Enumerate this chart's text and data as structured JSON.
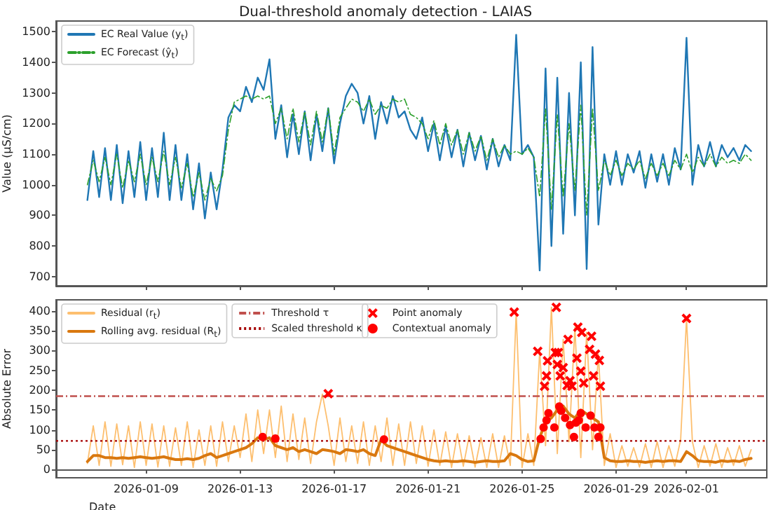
{
  "chart_data": [
    {
      "type": "line",
      "title": "Dual-threshold anomaly detection - LAIAS",
      "ylabel": "Value (µS/cm)",
      "x": [
        "2026-01-06T12:00",
        "2026-01-06T18:00",
        "2026-01-07T00:00",
        "2026-01-07T06:00",
        "2026-01-07T12:00",
        "2026-01-07T18:00",
        "2026-01-08T00:00",
        "2026-01-08T06:00",
        "2026-01-08T12:00",
        "2026-01-08T18:00",
        "2026-01-09T00:00",
        "2026-01-09T06:00",
        "2026-01-09T12:00",
        "2026-01-09T18:00",
        "2026-01-10T00:00",
        "2026-01-10T06:00",
        "2026-01-10T12:00",
        "2026-01-10T18:00",
        "2026-01-11T00:00",
        "2026-01-11T06:00",
        "2026-01-11T12:00",
        "2026-01-11T18:00",
        "2026-01-12T00:00",
        "2026-01-12T06:00",
        "2026-01-12T12:00",
        "2026-01-12T18:00",
        "2026-01-13T00:00",
        "2026-01-13T06:00",
        "2026-01-13T12:00",
        "2026-01-13T18:00",
        "2026-01-14T00:00",
        "2026-01-14T06:00",
        "2026-01-14T12:00",
        "2026-01-14T18:00",
        "2026-01-15T00:00",
        "2026-01-15T06:00",
        "2026-01-15T12:00",
        "2026-01-15T18:00",
        "2026-01-16T00:00",
        "2026-01-16T06:00",
        "2026-01-16T12:00",
        "2026-01-16T18:00",
        "2026-01-17T00:00",
        "2026-01-17T06:00",
        "2026-01-17T12:00",
        "2026-01-17T18:00",
        "2026-01-18T00:00",
        "2026-01-18T06:00",
        "2026-01-18T12:00",
        "2026-01-18T18:00",
        "2026-01-19T00:00",
        "2026-01-19T06:00",
        "2026-01-19T12:00",
        "2026-01-19T18:00",
        "2026-01-20T00:00",
        "2026-01-20T06:00",
        "2026-01-20T12:00",
        "2026-01-20T18:00",
        "2026-01-21T00:00",
        "2026-01-21T06:00",
        "2026-01-21T12:00",
        "2026-01-21T18:00",
        "2026-01-22T00:00",
        "2026-01-22T06:00",
        "2026-01-22T12:00",
        "2026-01-22T18:00",
        "2026-01-23T00:00",
        "2026-01-23T06:00",
        "2026-01-23T12:00",
        "2026-01-23T18:00",
        "2026-01-24T00:00",
        "2026-01-24T06:00",
        "2026-01-24T12:00",
        "2026-01-24T18:00",
        "2026-01-25T00:00",
        "2026-01-25T06:00",
        "2026-01-25T12:00",
        "2026-01-25T18:00",
        "2026-01-26T00:00",
        "2026-01-26T06:00",
        "2026-01-26T12:00",
        "2026-01-26T18:00",
        "2026-01-27T00:00",
        "2026-01-27T06:00",
        "2026-01-27T12:00",
        "2026-01-27T18:00",
        "2026-01-28T00:00",
        "2026-01-28T06:00",
        "2026-01-28T12:00",
        "2026-01-28T18:00",
        "2026-01-29T00:00",
        "2026-01-29T06:00",
        "2026-01-29T12:00",
        "2026-01-29T18:00",
        "2026-01-30T00:00",
        "2026-01-30T06:00",
        "2026-01-30T12:00",
        "2026-01-30T18:00",
        "2026-01-31T00:00",
        "2026-01-31T06:00",
        "2026-01-31T12:00",
        "2026-01-31T18:00",
        "2026-02-01T00:00",
        "2026-02-01T06:00",
        "2026-02-01T12:00",
        "2026-02-01T18:00",
        "2026-02-02T00:00",
        "2026-02-02T06:00",
        "2026-02-02T12:00",
        "2026-02-02T18:00",
        "2026-02-03T00:00",
        "2026-02-03T06:00",
        "2026-02-03T12:00",
        "2026-02-03T18:00"
      ],
      "series": [
        {
          "name": "EC Real Value (y$_{t}$)",
          "color": "#1f77b4",
          "line_style": "solid",
          "values": [
            950,
            1110,
            960,
            1120,
            950,
            1130,
            940,
            1110,
            960,
            1140,
            950,
            1120,
            960,
            1170,
            950,
            1130,
            950,
            1100,
            920,
            1070,
            890,
            1040,
            920,
            1050,
            1220,
            1260,
            1240,
            1320,
            1270,
            1350,
            1310,
            1410,
            1150,
            1260,
            1090,
            1230,
            1100,
            1240,
            1080,
            1230,
            1110,
            1250,
            1070,
            1200,
            1290,
            1330,
            1300,
            1200,
            1290,
            1150,
            1270,
            1200,
            1290,
            1220,
            1240,
            1180,
            1150,
            1220,
            1110,
            1200,
            1080,
            1190,
            1090,
            1180,
            1060,
            1170,
            1080,
            1160,
            1050,
            1150,
            1060,
            1130,
            1080,
            1490,
            1100,
            1130,
            1090,
            720,
            1380,
            800,
            1350,
            840,
            1300,
            900,
            1400,
            725,
            1450,
            870,
            1100,
            1000,
            1110,
            1000,
            1100,
            1040,
            1110,
            990,
            1100,
            1010,
            1100,
            1000,
            1120,
            1050,
            1480,
            1000,
            1130,
            1060,
            1140,
            1060,
            1130,
            1090,
            1120,
            1080,
            1130,
            1110
          ]
        },
        {
          "name": "EC Forecast (ŷ$_{t}$)",
          "color": "#2ca02c",
          "line_style": "dashed",
          "values": [
            1000,
            1080,
            1010,
            1090,
            1000,
            1100,
            990,
            1080,
            1010,
            1100,
            1000,
            1090,
            1010,
            1110,
            1000,
            1090,
            990,
            1070,
            960,
            1040,
            950,
            1020,
            980,
            1030,
            1180,
            1270,
            1280,
            1290,
            1280,
            1290,
            1280,
            1290,
            1200,
            1250,
            1150,
            1250,
            1140,
            1240,
            1130,
            1240,
            1140,
            1250,
            1100,
            1220,
            1250,
            1280,
            1270,
            1240,
            1280,
            1230,
            1260,
            1250,
            1280,
            1270,
            1280,
            1230,
            1220,
            1200,
            1150,
            1210,
            1130,
            1200,
            1130,
            1180,
            1100,
            1170,
            1110,
            1160,
            1080,
            1150,
            1090,
            1130,
            1100,
            1110,
            1100,
            1120,
            1090,
            960,
            1250,
            920,
            1230,
            960,
            1200,
            980,
            1260,
            900,
            1250,
            980,
            1080,
            1030,
            1080,
            1030,
            1070,
            1050,
            1080,
            1020,
            1070,
            1030,
            1070,
            1030,
            1080,
            1050,
            1100,
            1040,
            1090,
            1060,
            1100,
            1060,
            1090,
            1070,
            1080,
            1070,
            1100,
            1080
          ]
        }
      ],
      "xlim": [
        "2026-01-05T04:00",
        "2026-02-04T10:00"
      ],
      "xticks": [
        "2026-01-09",
        "2026-01-13",
        "2026-01-17",
        "2026-01-21",
        "2026-01-25",
        "2026-01-29",
        "2026-02-01"
      ],
      "ylim": [
        670,
        1535
      ],
      "yticks": [
        700,
        800,
        900,
        1000,
        1100,
        1200,
        1300,
        1400,
        1500
      ],
      "tick_labels": "y",
      "legend": "top left",
      "marker": "none"
    },
    {
      "type": "line",
      "xlabel": "Date",
      "ylabel": "Absolute Error",
      "x": [
        "2026-01-06T12:00",
        "2026-01-06T18:00",
        "2026-01-07T00:00",
        "2026-01-07T06:00",
        "2026-01-07T12:00",
        "2026-01-07T18:00",
        "2026-01-08T00:00",
        "2026-01-08T06:00",
        "2026-01-08T12:00",
        "2026-01-08T18:00",
        "2026-01-09T00:00",
        "2026-01-09T06:00",
        "2026-01-09T12:00",
        "2026-01-09T18:00",
        "2026-01-10T00:00",
        "2026-01-10T06:00",
        "2026-01-10T12:00",
        "2026-01-10T18:00",
        "2026-01-11T00:00",
        "2026-01-11T06:00",
        "2026-01-11T12:00",
        "2026-01-11T18:00",
        "2026-01-12T00:00",
        "2026-01-12T06:00",
        "2026-01-12T12:00",
        "2026-01-12T18:00",
        "2026-01-13T00:00",
        "2026-01-13T06:00",
        "2026-01-13T12:00",
        "2026-01-13T18:00",
        "2026-01-14T00:00",
        "2026-01-14T06:00",
        "2026-01-14T12:00",
        "2026-01-14T18:00",
        "2026-01-15T00:00",
        "2026-01-15T06:00",
        "2026-01-15T12:00",
        "2026-01-15T18:00",
        "2026-01-16T00:00",
        "2026-01-16T06:00",
        "2026-01-16T12:00",
        "2026-01-16T18:00",
        "2026-01-17T00:00",
        "2026-01-17T06:00",
        "2026-01-17T12:00",
        "2026-01-17T18:00",
        "2026-01-18T00:00",
        "2026-01-18T06:00",
        "2026-01-18T12:00",
        "2026-01-18T18:00",
        "2026-01-19T00:00",
        "2026-01-19T06:00",
        "2026-01-19T12:00",
        "2026-01-19T18:00",
        "2026-01-20T00:00",
        "2026-01-20T06:00",
        "2026-01-20T12:00",
        "2026-01-20T18:00",
        "2026-01-21T00:00",
        "2026-01-21T06:00",
        "2026-01-21T12:00",
        "2026-01-21T18:00",
        "2026-01-22T00:00",
        "2026-01-22T06:00",
        "2026-01-22T12:00",
        "2026-01-22T18:00",
        "2026-01-23T00:00",
        "2026-01-23T06:00",
        "2026-01-23T12:00",
        "2026-01-23T18:00",
        "2026-01-24T00:00",
        "2026-01-24T06:00",
        "2026-01-24T12:00",
        "2026-01-24T18:00",
        "2026-01-25T00:00",
        "2026-01-25T06:00",
        "2026-01-25T12:00",
        "2026-01-25T18:00",
        "2026-01-26T00:00",
        "2026-01-26T06:00",
        "2026-01-26T12:00",
        "2026-01-26T18:00",
        "2026-01-27T00:00",
        "2026-01-27T06:00",
        "2026-01-27T12:00",
        "2026-01-27T18:00",
        "2026-01-28T00:00",
        "2026-01-28T06:00",
        "2026-01-28T12:00",
        "2026-01-28T18:00",
        "2026-01-29T00:00",
        "2026-01-29T06:00",
        "2026-01-29T12:00",
        "2026-01-29T18:00",
        "2026-01-30T00:00",
        "2026-01-30T06:00",
        "2026-01-30T12:00",
        "2026-01-30T18:00",
        "2026-01-31T00:00",
        "2026-01-31T06:00",
        "2026-01-31T12:00",
        "2026-01-31T18:00",
        "2026-02-01T00:00",
        "2026-02-01T06:00",
        "2026-02-01T12:00",
        "2026-02-01T18:00",
        "2026-02-02T00:00",
        "2026-02-02T06:00",
        "2026-02-02T12:00",
        "2026-02-02T18:00",
        "2026-02-03T00:00",
        "2026-02-03T06:00",
        "2026-02-03T12:00",
        "2026-02-03T18:00"
      ],
      "series": [
        {
          "name": "Residual (r$_{t}$)",
          "color": "#fdbf6f",
          "line_style": "solid",
          "values": [
            15,
            110,
            10,
            120,
            8,
            115,
            12,
            110,
            5,
            120,
            10,
            115,
            6,
            110,
            8,
            105,
            10,
            120,
            5,
            100,
            10,
            110,
            8,
            120,
            20,
            110,
            30,
            140,
            20,
            150,
            40,
            150,
            30,
            160,
            20,
            140,
            25,
            130,
            15,
            120,
            190,
            110,
            10,
            130,
            20,
            110,
            15,
            120,
            10,
            110,
            20,
            130,
            10,
            115,
            10,
            120,
            15,
            110,
            8,
            100,
            10,
            95,
            5,
            90,
            8,
            85,
            6,
            80,
            5,
            90,
            5,
            85,
            10,
            397,
            5,
            90,
            10,
            298,
            60,
            409,
            40,
            328,
            70,
            359,
            30,
            346,
            50,
            291,
            10,
            90,
            5,
            60,
            8,
            55,
            6,
            65,
            5,
            70,
            5,
            60,
            8,
            75,
            381,
            70,
            5,
            60,
            8,
            65,
            5,
            55,
            10,
            60,
            8,
            50
          ]
        },
        {
          "name": "Rolling avg. residual (R$_{t}$)",
          "color": "#d9780f",
          "line_style": "solid",
          "values": [
            20,
            35,
            35,
            30,
            30,
            28,
            30,
            28,
            30,
            32,
            30,
            28,
            30,
            32,
            28,
            25,
            25,
            27,
            25,
            28,
            35,
            40,
            30,
            35,
            40,
            45,
            50,
            55,
            65,
            80,
            75,
            80,
            60,
            55,
            50,
            55,
            45,
            50,
            45,
            40,
            50,
            48,
            45,
            40,
            50,
            48,
            45,
            50,
            40,
            35,
            75,
            60,
            55,
            50,
            45,
            40,
            35,
            30,
            25,
            22,
            20,
            22,
            20,
            20,
            22,
            20,
            18,
            20,
            22,
            20,
            20,
            22,
            40,
            35,
            25,
            20,
            22,
            80,
            120,
            130,
            150,
            160,
            140,
            130,
            150,
            140,
            130,
            120,
            30,
            22,
            20,
            20,
            22,
            20,
            20,
            18,
            20,
            22,
            20,
            22,
            22,
            20,
            45,
            35,
            22,
            20,
            20,
            18,
            22,
            20,
            22,
            20,
            25,
            28
          ]
        },
        {
          "name": "Point anomaly",
          "type": "scatter",
          "marker": "cross",
          "color": "#ff0000",
          "x": [
            "2026-01-16T18:00",
            "2026-01-24T16:00",
            "2026-01-25T16:00",
            "2026-01-25T23:00",
            "2026-01-26T01:00",
            "2026-01-26T02:00",
            "2026-01-26T10:00",
            "2026-01-26T11:00",
            "2026-01-26T12:00",
            "2026-01-26T13:00",
            "2026-01-26T15:00",
            "2026-01-26T18:00",
            "2026-01-26T22:00",
            "2026-01-26T23:00",
            "2026-01-27T01:00",
            "2026-01-27T03:00",
            "2026-01-27T08:00",
            "2026-01-27T09:00",
            "2026-01-27T12:00",
            "2026-01-27T13:00",
            "2026-01-27T15:00",
            "2026-01-27T21:00",
            "2026-01-27T23:00",
            "2026-01-28T01:00",
            "2026-01-28T03:00",
            "2026-01-28T07:00",
            "2026-01-28T08:00",
            "2026-02-01T00:00"
          ],
          "values": [
            191,
            397,
            298,
            210,
            236,
            274,
            295,
            409,
            265,
            295,
            236,
            257,
            212,
            328,
            224,
            210,
            281,
            359,
            248,
            346,
            218,
            303,
            336,
            236,
            291,
            275,
            210,
            381
          ]
        },
        {
          "name": "Contextual anomaly",
          "type": "scatter",
          "marker": "circle",
          "color": "#ff0000",
          "x": [
            "2026-01-13T23:00",
            "2026-01-14T12:00",
            "2026-01-19T03:00",
            "2026-01-25T19:00",
            "2026-01-25T22:00",
            "2026-01-26T01:00",
            "2026-01-26T03:00",
            "2026-01-26T09:00",
            "2026-01-26T14:00",
            "2026-01-26T16:00",
            "2026-01-26T20:00",
            "2026-01-27T01:00",
            "2026-01-27T05:00",
            "2026-01-27T07:00",
            "2026-01-27T10:00",
            "2026-01-27T12:00",
            "2026-01-27T17:00",
            "2026-01-27T22:00",
            "2026-01-28T02:00",
            "2026-01-28T06:00",
            "2026-01-28T08:00"
          ],
          "values": [
            82,
            78,
            76,
            77,
            106,
            124,
            142,
            106,
            159,
            148,
            130,
            112,
            82,
            118,
            124,
            142,
            106,
            136,
            106,
            82,
            106
          ]
        }
      ],
      "ref_lines": [
        {
          "axis": "y",
          "value": 185,
          "label": "Threshold τ",
          "color": "#c0504d",
          "line_style": "dashed"
        },
        {
          "axis": "y",
          "value": 72,
          "label": "Scaled threshold κ",
          "color": "#a50000",
          "line_style": "dotted"
        }
      ],
      "xlim": [
        "2026-01-05T04:00",
        "2026-02-04T10:00"
      ],
      "xticks": [
        "2026-01-09",
        "2026-01-13",
        "2026-01-17",
        "2026-01-21",
        "2026-01-25",
        "2026-01-29",
        "2026-02-01"
      ],
      "ylim": [
        -21,
        428
      ],
      "yticks": [
        0,
        50,
        100,
        150,
        200,
        250,
        300,
        350,
        400
      ],
      "legend": "top left",
      "marker": "none"
    }
  ]
}
